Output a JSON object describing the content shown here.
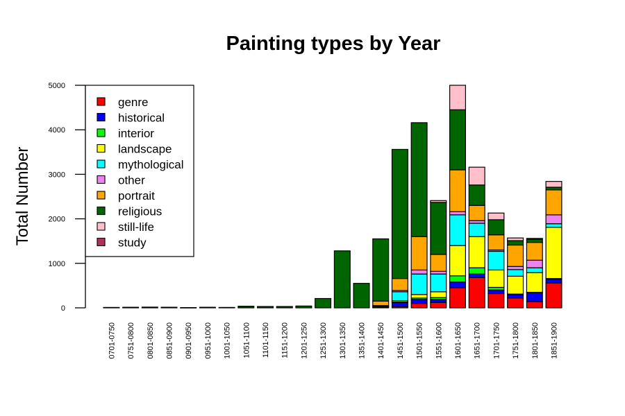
{
  "chart_data": {
    "type": "bar",
    "stacked": true,
    "title": "Painting types by Year",
    "xlabel": "",
    "ylabel": "Total Number",
    "ylim": [
      0,
      5000
    ],
    "yticks": [
      0,
      1000,
      2000,
      3000,
      4000,
      5000
    ],
    "legend_position": "top-left",
    "categories": [
      "0701-0750",
      "0751-0800",
      "0801-0850",
      "0851-0900",
      "0901-0950",
      "0951-1000",
      "1001-1050",
      "1051-1100",
      "1101-1150",
      "1151-1200",
      "1201-1250",
      "1251-1300",
      "1301-1350",
      "1351-1400",
      "1401-1450",
      "1451-1500",
      "1501-1550",
      "1551-1600",
      "1601-1650",
      "1651-1700",
      "1701-1750",
      "1751-1800",
      "1801-1850",
      "1851-1900"
    ],
    "series": [
      {
        "name": "genre",
        "color": "#ff0000",
        "values": [
          0,
          0,
          0,
          0,
          0,
          0,
          0,
          0,
          0,
          0,
          0,
          0,
          0,
          0,
          0,
          30,
          100,
          120,
          450,
          680,
          320,
          220,
          140,
          560
        ]
      },
      {
        "name": "historical",
        "color": "#0000ff",
        "values": [
          0,
          0,
          0,
          0,
          0,
          0,
          0,
          0,
          0,
          0,
          0,
          0,
          0,
          0,
          10,
          90,
          90,
          70,
          130,
          80,
          80,
          70,
          200,
          80
        ]
      },
      {
        "name": "interior",
        "color": "#00ff00",
        "values": [
          0,
          0,
          0,
          0,
          0,
          0,
          0,
          0,
          0,
          0,
          0,
          0,
          0,
          0,
          0,
          10,
          30,
          40,
          140,
          140,
          60,
          20,
          10,
          20
        ]
      },
      {
        "name": "landscape",
        "color": "#ffff00",
        "values": [
          0,
          0,
          0,
          0,
          0,
          0,
          0,
          0,
          0,
          0,
          0,
          0,
          0,
          0,
          20,
          30,
          80,
          130,
          680,
          700,
          390,
          400,
          440,
          1150
        ]
      },
      {
        "name": "mythological",
        "color": "#00ffff",
        "values": [
          0,
          0,
          0,
          0,
          0,
          0,
          0,
          0,
          0,
          0,
          0,
          0,
          0,
          0,
          20,
          200,
          460,
          400,
          690,
          300,
          420,
          150,
          110,
          80
        ]
      },
      {
        "name": "other",
        "color": "#ee82ee",
        "values": [
          0,
          0,
          0,
          0,
          0,
          0,
          0,
          0,
          0,
          0,
          0,
          0,
          0,
          0,
          0,
          30,
          90,
          60,
          70,
          60,
          30,
          70,
          170,
          200
        ]
      },
      {
        "name": "portrait",
        "color": "#ffa500",
        "values": [
          0,
          0,
          0,
          0,
          0,
          0,
          0,
          0,
          0,
          0,
          0,
          0,
          0,
          0,
          100,
          270,
          750,
          380,
          940,
          340,
          340,
          480,
          400,
          560
        ]
      },
      {
        "name": "religious",
        "color": "#006400",
        "values": [
          8,
          12,
          15,
          14,
          5,
          12,
          8,
          35,
          30,
          30,
          40,
          210,
          1280,
          550,
          1400,
          2900,
          2560,
          1170,
          1350,
          460,
          340,
          100,
          70,
          60
        ]
      },
      {
        "name": "still-life",
        "color": "#ffc0cb",
        "values": [
          0,
          0,
          0,
          0,
          0,
          0,
          0,
          0,
          0,
          0,
          0,
          0,
          0,
          0,
          0,
          0,
          0,
          40,
          550,
          400,
          150,
          60,
          20,
          130
        ]
      },
      {
        "name": "study",
        "color": "#b03060",
        "values": [
          0,
          0,
          0,
          0,
          0,
          0,
          0,
          0,
          0,
          0,
          0,
          0,
          0,
          0,
          0,
          0,
          0,
          0,
          0,
          0,
          0,
          0,
          0,
          0
        ]
      }
    ]
  }
}
